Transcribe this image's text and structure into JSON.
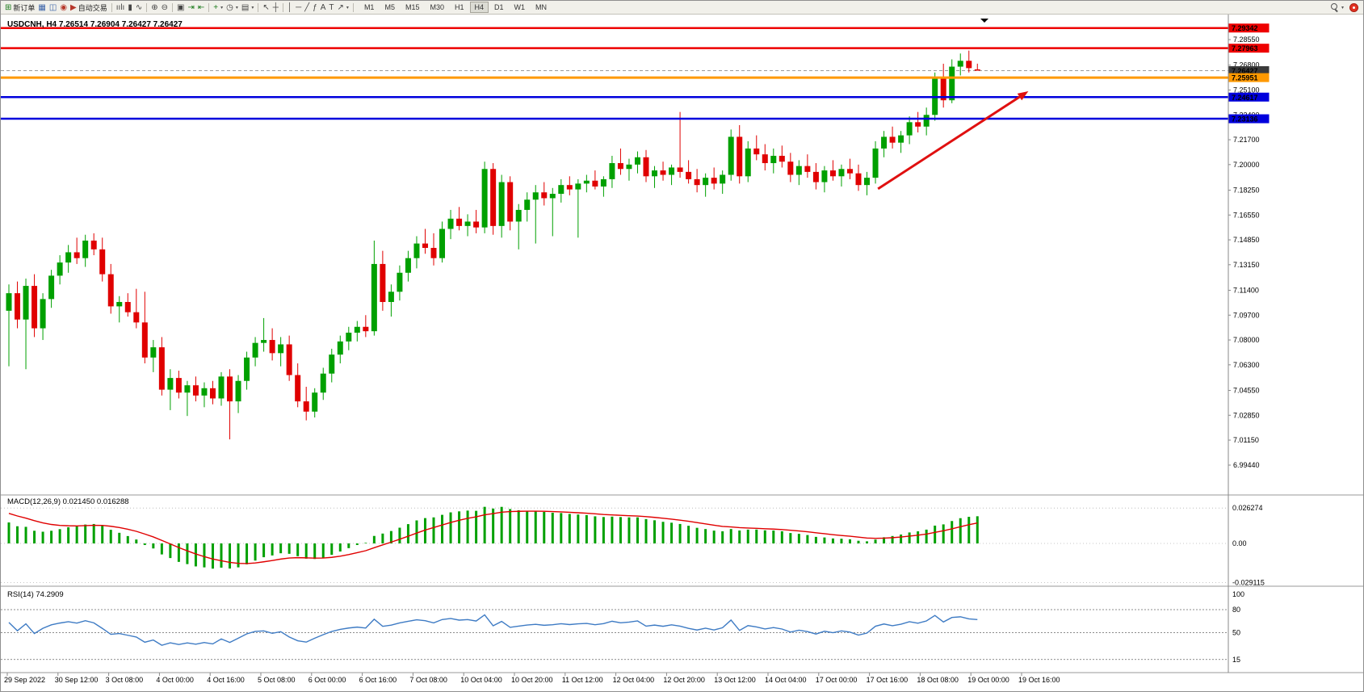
{
  "toolbar": {
    "items": [
      {
        "t": "btn",
        "name": "new-order-button",
        "glyph": "⊞",
        "color": "#1a7a1a",
        "label": "新订单"
      },
      {
        "t": "btn",
        "name": "charts-window-button",
        "glyph": "▦",
        "color": "#3a62a8"
      },
      {
        "t": "btn",
        "name": "profiles-button",
        "glyph": "◫",
        "color": "#3a62a8"
      },
      {
        "t": "btn",
        "name": "alerts-button",
        "glyph": "◉",
        "color": "#b6372a"
      },
      {
        "t": "btn",
        "name": "autotrade-button",
        "glyph": "▶",
        "color": "#b6372a",
        "label": "自动交易"
      },
      {
        "t": "sep"
      },
      {
        "t": "btn",
        "name": "bar-chart-button",
        "glyph": "ıılı",
        "color": "#444"
      },
      {
        "t": "btn",
        "name": "candlestick-chart-button",
        "glyph": "▮",
        "color": "#444"
      },
      {
        "t": "btn",
        "name": "line-chart-button",
        "glyph": "∿",
        "color": "#444"
      },
      {
        "t": "sep"
      },
      {
        "t": "btn",
        "name": "zoom-in-button",
        "glyph": "⊕",
        "color": "#444"
      },
      {
        "t": "btn",
        "name": "zoom-out-button",
        "glyph": "⊖",
        "color": "#444"
      },
      {
        "t": "sep"
      },
      {
        "t": "btn",
        "name": "tile-windows-button",
        "glyph": "▣",
        "color": "#444"
      },
      {
        "t": "btn",
        "name": "auto-scroll-button",
        "glyph": "⇥",
        "color": "#1a7a1a"
      },
      {
        "t": "btn",
        "name": "chart-shift-button",
        "glyph": "⇤",
        "color": "#1a7a1a"
      },
      {
        "t": "sep"
      },
      {
        "t": "btn",
        "name": "indicators-button",
        "glyph": "+",
        "color": "#1a7a1a",
        "caret": true
      },
      {
        "t": "btn",
        "name": "periods-button",
        "glyph": "◷",
        "color": "#444",
        "caret": true
      },
      {
        "t": "btn",
        "name": "templates-button",
        "glyph": "▤",
        "color": "#444",
        "caret": true
      },
      {
        "t": "sep"
      },
      {
        "t": "btn",
        "name": "cursor-button",
        "glyph": "↖",
        "color": "#444"
      },
      {
        "t": "btn",
        "name": "crosshair-button",
        "glyph": "┼",
        "color": "#444"
      },
      {
        "t": "sep"
      },
      {
        "t": "btn",
        "name": "vertical-line-button",
        "glyph": "│",
        "color": "#444"
      },
      {
        "t": "btn",
        "name": "horizontal-line-button",
        "glyph": "─",
        "color": "#444"
      },
      {
        "t": "btn",
        "name": "trendline-button",
        "glyph": "╱",
        "color": "#444"
      },
      {
        "t": "btn",
        "name": "fibonacci-button",
        "glyph": "ƒ",
        "color": "#444"
      },
      {
        "t": "btn",
        "name": "text-button",
        "glyph": "A",
        "color": "#444"
      },
      {
        "t": "btn",
        "name": "text-label-button",
        "glyph": "T",
        "color": "#444"
      },
      {
        "t": "btn",
        "name": "arrows-button",
        "glyph": "↗",
        "color": "#444",
        "caret": true
      },
      {
        "t": "sep"
      }
    ],
    "timeframes": [
      "M1",
      "M5",
      "M15",
      "M30",
      "H1",
      "H4",
      "D1",
      "W1",
      "MN"
    ],
    "active_timeframe": "H4"
  },
  "chart": {
    "title": "USDCNH, H4 7.26514 7.26904 7.26427 7.26427",
    "symbol": "USDCNH",
    "timeframe": "H4",
    "open": "7.26514",
    "high": "7.26904",
    "low": "7.26427",
    "close": "7.26427"
  },
  "price_axis": {
    "labels": [
      "7.28550",
      "7.26800",
      "7.25100",
      "7.23400",
      "7.21700",
      "7.20000",
      "7.18250",
      "7.16550",
      "7.14850",
      "7.13150",
      "7.11400",
      "7.09700",
      "7.08000",
      "7.06300",
      "7.04550",
      "7.02850",
      "7.01150",
      "6.99440"
    ],
    "boxes": [
      {
        "value": "7.29342",
        "color": "#ee0000",
        "text": "#ffffff"
      },
      {
        "value": "7.27963",
        "color": "#ee0000",
        "text": "#ffffff"
      },
      {
        "value": "7.26427",
        "color": "#3a3a3a",
        "text": "#ffffff"
      },
      {
        "value": "7.25951",
        "color": "#ff9900",
        "text": "#ffffff"
      },
      {
        "value": "7.24617",
        "color": "#0000dd",
        "text": "#ffffff"
      },
      {
        "value": "7.23136",
        "color": "#0000dd",
        "text": "#ffffff"
      }
    ]
  },
  "macd_panel": {
    "title": "MACD(12,26,9) 0.021450 0.016288",
    "macd_value": "0.021450",
    "signal_value": "0.016288",
    "axis": [
      "0.026274",
      "0.00",
      "-0.029115"
    ]
  },
  "rsi_panel": {
    "title": "RSI(14) 74.2909",
    "value": "74.2909",
    "axis": [
      "100",
      "80",
      "50",
      "15"
    ],
    "levels": [
      80,
      50,
      15
    ]
  },
  "time_axis": [
    "29 Sep 2022",
    "30 Sep 12:00",
    "3 Oct 08:00",
    "4 Oct 00:00",
    "4 Oct 16:00",
    "5 Oct 08:00",
    "6 Oct 00:00",
    "6 Oct 16:00",
    "7 Oct 08:00",
    "10 Oct 04:00",
    "10 Oct 20:00",
    "11 Oct 12:00",
    "12 Oct 04:00",
    "12 Oct 20:00",
    "13 Oct 12:00",
    "14 Oct 04:00",
    "17 Oct 00:00",
    "17 Oct 16:00",
    "18 Oct 08:00",
    "19 Oct 00:00",
    "19 Oct 16:00"
  ],
  "chart_data": {
    "type": "candlestick",
    "symbol": "USDCNH",
    "timeframe": "H4",
    "price_range": {
      "top": 7.301,
      "bottom": 6.9944
    },
    "current_price": 7.26427,
    "colors": {
      "up": "#00a000",
      "down": "#e00000",
      "macd": "#00a000",
      "signal": "#e00000",
      "rsi": "#3e7bc4"
    },
    "hlines": [
      {
        "price": 7.29342,
        "color": "#ee0000",
        "width": 2.5
      },
      {
        "price": 7.27963,
        "color": "#ee0000",
        "width": 2.5
      },
      {
        "price": 7.25951,
        "color": "#ff9900",
        "width": 3
      },
      {
        "price": 7.24617,
        "color": "#0000dd",
        "width": 2.5
      },
      {
        "price": 7.23136,
        "color": "#0000dd",
        "width": 2.5
      }
    ],
    "arrow": {
      "from": {
        "index": 102.3,
        "price": 7.1834
      },
      "to": {
        "index": 120.0,
        "price": 7.2502
      },
      "color": "#e01010"
    },
    "indicators": {
      "macd": {
        "fast": 12,
        "slow": 26,
        "signal": 9,
        "display_peak": 0.0272
      },
      "rsi": {
        "period": 14
      }
    },
    "prehistory_closes": [
      7.01,
      7.016,
      7.023,
      7.029,
      7.036,
      7.042,
      7.049,
      7.055,
      7.062,
      7.068,
      7.075,
      7.081,
      7.088,
      7.094,
      7.101,
      7.107,
      7.114,
      7.12,
      7.127,
      7.133,
      7.14,
      7.15,
      7.144,
      7.137,
      7.13,
      7.122,
      7.115,
      7.109,
      7.104,
      7.101
    ],
    "candles": [
      [
        7.1,
        7.118,
        7.062,
        7.112
      ],
      [
        7.112,
        7.12,
        7.088,
        7.094
      ],
      [
        7.094,
        7.122,
        7.06,
        7.117
      ],
      [
        7.117,
        7.125,
        7.082,
        7.088
      ],
      [
        7.088,
        7.112,
        7.08,
        7.108
      ],
      [
        7.108,
        7.128,
        7.102,
        7.124
      ],
      [
        7.124,
        7.138,
        7.118,
        7.133
      ],
      [
        7.133,
        7.145,
        7.126,
        7.14
      ],
      [
        7.14,
        7.15,
        7.132,
        7.136
      ],
      [
        7.136,
        7.152,
        7.13,
        7.148
      ],
      [
        7.148,
        7.153,
        7.138,
        7.142
      ],
      [
        7.142,
        7.15,
        7.12,
        7.125
      ],
      [
        7.125,
        7.132,
        7.098,
        7.103
      ],
      [
        7.103,
        7.11,
        7.092,
        7.106
      ],
      [
        7.106,
        7.112,
        7.096,
        7.099
      ],
      [
        7.099,
        7.115,
        7.088,
        7.092
      ],
      [
        7.092,
        7.113,
        7.064,
        7.068
      ],
      [
        7.068,
        7.08,
        7.058,
        7.075
      ],
      [
        7.075,
        7.082,
        7.042,
        7.046
      ],
      [
        7.046,
        7.06,
        7.032,
        7.054
      ],
      [
        7.054,
        7.059,
        7.04,
        7.044
      ],
      [
        7.044,
        7.052,
        7.028,
        7.049
      ],
      [
        7.049,
        7.055,
        7.038,
        7.042
      ],
      [
        7.042,
        7.051,
        7.034,
        7.047
      ],
      [
        7.047,
        7.052,
        7.036,
        7.04
      ],
      [
        7.04,
        7.058,
        7.035,
        7.055
      ],
      [
        7.055,
        7.06,
        7.012,
        7.038
      ],
      [
        7.038,
        7.056,
        7.03,
        7.052
      ],
      [
        7.052,
        7.072,
        7.046,
        7.068
      ],
      [
        7.068,
        7.082,
        7.062,
        7.078
      ],
      [
        7.078,
        7.095,
        7.072,
        7.08
      ],
      [
        7.08,
        7.088,
        7.066,
        7.071
      ],
      [
        7.071,
        7.082,
        7.062,
        7.077
      ],
      [
        7.077,
        7.083,
        7.052,
        7.056
      ],
      [
        7.056,
        7.064,
        7.034,
        7.038
      ],
      [
        7.038,
        7.048,
        7.025,
        7.031
      ],
      [
        7.031,
        7.047,
        7.027,
        7.044
      ],
      [
        7.044,
        7.061,
        7.039,
        7.057
      ],
      [
        7.057,
        7.074,
        7.051,
        7.07
      ],
      [
        7.07,
        7.083,
        7.064,
        7.079
      ],
      [
        7.079,
        7.089,
        7.073,
        7.085
      ],
      [
        7.085,
        7.093,
        7.079,
        7.089
      ],
      [
        7.089,
        7.097,
        7.082,
        7.086
      ],
      [
        7.086,
        7.148,
        7.083,
        7.132
      ],
      [
        7.132,
        7.141,
        7.1,
        7.106
      ],
      [
        7.106,
        7.118,
        7.096,
        7.113
      ],
      [
        7.113,
        7.131,
        7.107,
        7.126
      ],
      [
        7.126,
        7.141,
        7.12,
        7.136
      ],
      [
        7.136,
        7.151,
        7.129,
        7.146
      ],
      [
        7.146,
        7.156,
        7.139,
        7.143
      ],
      [
        7.143,
        7.153,
        7.131,
        7.136
      ],
      [
        7.136,
        7.161,
        7.133,
        7.156
      ],
      [
        7.156,
        7.169,
        7.149,
        7.163
      ],
      [
        7.163,
        7.171,
        7.155,
        7.158
      ],
      [
        7.158,
        7.166,
        7.151,
        7.161
      ],
      [
        7.161,
        7.169,
        7.153,
        7.157
      ],
      [
        7.157,
        7.202,
        7.153,
        7.197
      ],
      [
        7.197,
        7.201,
        7.152,
        7.158
      ],
      [
        7.158,
        7.193,
        7.15,
        7.188
      ],
      [
        7.188,
        7.192,
        7.155,
        7.161
      ],
      [
        7.161,
        7.173,
        7.142,
        7.169
      ],
      [
        7.169,
        7.181,
        7.161,
        7.176
      ],
      [
        7.176,
        7.186,
        7.146,
        7.181
      ],
      [
        7.181,
        7.188,
        7.172,
        7.177
      ],
      [
        7.177,
        7.184,
        7.151,
        7.18
      ],
      [
        7.18,
        7.19,
        7.174,
        7.186
      ],
      [
        7.186,
        7.192,
        7.179,
        7.183
      ],
      [
        7.183,
        7.19,
        7.15,
        7.187
      ],
      [
        7.187,
        7.193,
        7.181,
        7.189
      ],
      [
        7.189,
        7.196,
        7.183,
        7.185
      ],
      [
        7.185,
        7.192,
        7.178,
        7.19
      ],
      [
        7.19,
        7.206,
        7.184,
        7.201
      ],
      [
        7.201,
        7.211,
        7.193,
        7.197
      ],
      [
        7.197,
        7.204,
        7.189,
        7.2
      ],
      [
        7.2,
        7.209,
        7.194,
        7.205
      ],
      [
        7.205,
        7.21,
        7.188,
        7.192
      ],
      [
        7.192,
        7.199,
        7.184,
        7.196
      ],
      [
        7.196,
        7.202,
        7.189,
        7.193
      ],
      [
        7.193,
        7.2,
        7.186,
        7.198
      ],
      [
        7.198,
        7.236,
        7.191,
        7.195
      ],
      [
        7.195,
        7.203,
        7.187,
        7.19
      ],
      [
        7.19,
        7.197,
        7.181,
        7.186
      ],
      [
        7.186,
        7.194,
        7.178,
        7.191
      ],
      [
        7.191,
        7.198,
        7.183,
        7.187
      ],
      [
        7.187,
        7.196,
        7.18,
        7.193
      ],
      [
        7.193,
        7.224,
        7.189,
        7.219
      ],
      [
        7.219,
        7.227,
        7.187,
        7.192
      ],
      [
        7.192,
        7.216,
        7.188,
        7.211
      ],
      [
        7.211,
        7.22,
        7.203,
        7.207
      ],
      [
        7.207,
        7.214,
        7.196,
        7.201
      ],
      [
        7.201,
        7.211,
        7.194,
        7.206
      ],
      [
        7.206,
        7.213,
        7.198,
        7.202
      ],
      [
        7.202,
        7.208,
        7.188,
        7.193
      ],
      [
        7.193,
        7.203,
        7.186,
        7.199
      ],
      [
        7.199,
        7.207,
        7.191,
        7.195
      ],
      [
        7.195,
        7.201,
        7.183,
        7.188
      ],
      [
        7.188,
        7.199,
        7.181,
        7.196
      ],
      [
        7.196,
        7.203,
        7.189,
        7.192
      ],
      [
        7.192,
        7.2,
        7.185,
        7.197
      ],
      [
        7.197,
        7.204,
        7.19,
        7.194
      ],
      [
        7.194,
        7.2,
        7.182,
        7.186
      ],
      [
        7.186,
        7.195,
        7.179,
        7.191
      ],
      [
        7.191,
        7.216,
        7.187,
        7.211
      ],
      [
        7.211,
        7.223,
        7.205,
        7.219
      ],
      [
        7.219,
        7.226,
        7.211,
        7.215
      ],
      [
        7.215,
        7.223,
        7.208,
        7.22
      ],
      [
        7.22,
        7.233,
        7.214,
        7.229
      ],
      [
        7.229,
        7.236,
        7.222,
        7.226
      ],
      [
        7.226,
        7.239,
        7.22,
        7.234
      ],
      [
        7.234,
        7.263,
        7.23,
        7.259
      ],
      [
        7.259,
        7.269,
        7.239,
        7.244
      ],
      [
        7.244,
        7.272,
        7.242,
        7.267
      ],
      [
        7.267,
        7.276,
        7.261,
        7.271
      ],
      [
        7.271,
        7.278,
        7.263,
        7.266
      ],
      [
        7.26514,
        7.26904,
        7.26427,
        7.26427
      ]
    ]
  }
}
